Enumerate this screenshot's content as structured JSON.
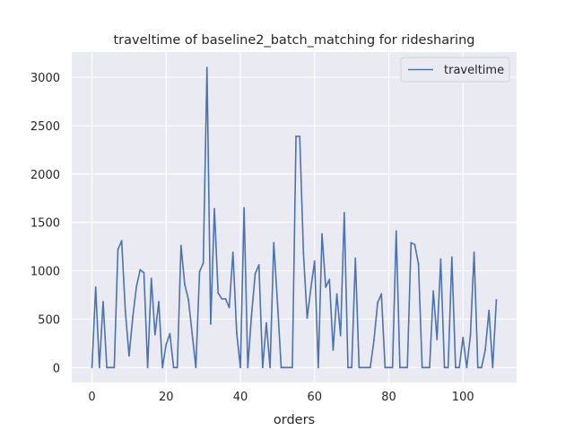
{
  "chart_data": {
    "type": "line",
    "title": "traveltime of baseline2_batch_matching for ridesharing",
    "xlabel": "orders",
    "ylabel": "",
    "xlim": [
      -5.45,
      114.45
    ],
    "ylim": [
      -155,
      3260
    ],
    "xticks": [
      0,
      20,
      40,
      60,
      80,
      100
    ],
    "yticks": [
      0,
      500,
      1000,
      1500,
      2000,
      2500,
      3000
    ],
    "grid": true,
    "legend_position": "top-right",
    "series": [
      {
        "name": "traveltime",
        "color": "#4c72b0",
        "x": [
          0,
          1,
          2,
          3,
          4,
          5,
          6,
          7,
          8,
          9,
          10,
          11,
          12,
          13,
          14,
          15,
          16,
          17,
          18,
          19,
          20,
          21,
          22,
          23,
          24,
          25,
          26,
          27,
          28,
          29,
          30,
          31,
          32,
          33,
          34,
          35,
          36,
          37,
          38,
          39,
          40,
          41,
          42,
          43,
          44,
          45,
          46,
          47,
          48,
          49,
          50,
          51,
          52,
          53,
          54,
          55,
          56,
          57,
          58,
          59,
          60,
          61,
          62,
          63,
          64,
          65,
          66,
          67,
          68,
          69,
          70,
          71,
          72,
          73,
          74,
          75,
          76,
          77,
          78,
          79,
          80,
          81,
          82,
          83,
          84,
          85,
          86,
          87,
          88,
          89,
          90,
          91,
          92,
          93,
          94,
          95,
          96,
          97,
          98,
          99,
          100,
          101,
          102,
          103,
          104,
          105,
          106,
          107,
          108,
          109
        ],
        "values": [
          0,
          830,
          0,
          680,
          0,
          0,
          0,
          1220,
          1310,
          580,
          120,
          520,
          840,
          1010,
          980,
          0,
          920,
          340,
          680,
          0,
          240,
          350,
          0,
          0,
          1260,
          860,
          700,
          350,
          0,
          990,
          1080,
          3100,
          450,
          1640,
          770,
          710,
          710,
          620,
          1190,
          360,
          0,
          1650,
          0,
          540,
          970,
          1060,
          0,
          460,
          0,
          1290,
          670,
          0,
          0,
          0,
          0,
          2390,
          2390,
          1180,
          510,
          820,
          1100,
          0,
          1380,
          830,
          910,
          180,
          760,
          330,
          1600,
          0,
          0,
          1130,
          0,
          0,
          0,
          0,
          280,
          670,
          760,
          0,
          0,
          0,
          1410,
          0,
          0,
          0,
          1290,
          1270,
          1070,
          0,
          0,
          0,
          790,
          290,
          1120,
          0,
          0,
          1140,
          0,
          0,
          310,
          0,
          330,
          1190,
          0,
          0,
          180,
          590,
          0,
          700
        ]
      }
    ]
  }
}
